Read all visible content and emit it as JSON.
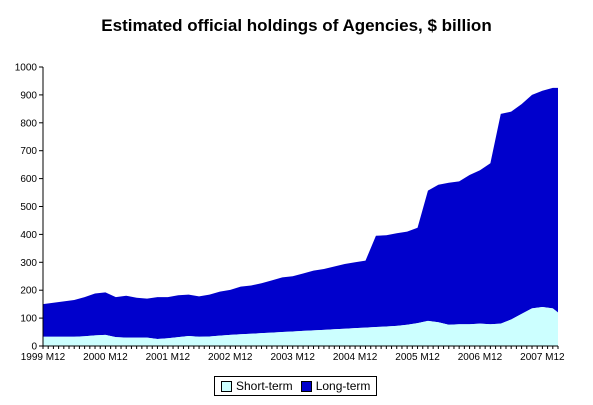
{
  "chart_data": {
    "type": "area",
    "stacked": true,
    "title": "Estimated official holdings of Agencies, $ billion",
    "xlabel": "",
    "ylabel": "",
    "ylim": [
      0,
      1000
    ],
    "yticks": [
      0,
      100,
      200,
      300,
      400,
      500,
      600,
      700,
      800,
      900,
      1000
    ],
    "x_tick_labels": [
      "1999 M12",
      "2000 M12",
      "2001 M12",
      "2002 M12",
      "2003 M12",
      "2004 M12",
      "2005 M12",
      "2006 M12",
      "2007 M12"
    ],
    "x_range": [
      "1999 M12",
      "2008 M03"
    ],
    "grid": false,
    "legend": "bottom",
    "colors": {
      "short_term": "#ccffff",
      "long_term": "#0000cc"
    },
    "x": [
      "1999 M12",
      "2000 M02",
      "2000 M04",
      "2000 M06",
      "2000 M08",
      "2000 M10",
      "2000 M12",
      "2001 M02",
      "2001 M04",
      "2001 M06",
      "2001 M08",
      "2001 M10",
      "2001 M12",
      "2002 M02",
      "2002 M04",
      "2002 M06",
      "2002 M08",
      "2002 M10",
      "2002 M12",
      "2003 M02",
      "2003 M04",
      "2003 M06",
      "2003 M08",
      "2003 M10",
      "2003 M12",
      "2004 M02",
      "2004 M04",
      "2004 M06",
      "2004 M08",
      "2004 M10",
      "2004 M12",
      "2005 M02",
      "2005 M04",
      "2005 M06",
      "2005 M08",
      "2005 M10",
      "2005 M12",
      "2006 M02",
      "2006 M04",
      "2006 M06",
      "2006 M08",
      "2006 M10",
      "2006 M12",
      "2007 M02",
      "2007 M04",
      "2007 M06",
      "2007 M08",
      "2007 M10",
      "2007 M12",
      "2008 M02",
      "2008 M03"
    ],
    "series": [
      {
        "name": "Short-term",
        "values": [
          33,
          33,
          33,
          33,
          35,
          38,
          40,
          32,
          30,
          30,
          30,
          25,
          28,
          32,
          36,
          33,
          34,
          37,
          40,
          42,
          44,
          46,
          48,
          50,
          52,
          54,
          56,
          58,
          60,
          62,
          64,
          66,
          68,
          70,
          72,
          76,
          82,
          90,
          85,
          76,
          78,
          78,
          80,
          78,
          80,
          95,
          115,
          135,
          140,
          135,
          120
        ]
      },
      {
        "name": "Long-term",
        "values": [
          117,
          122,
          127,
          132,
          140,
          150,
          152,
          143,
          150,
          143,
          140,
          150,
          147,
          150,
          148,
          145,
          150,
          158,
          161,
          171,
          173,
          179,
          187,
          196,
          198,
          206,
          214,
          218,
          225,
          232,
          236,
          240,
          327,
          327,
          332,
          334,
          342,
          467,
          493,
          509,
          512,
          535,
          550,
          577,
          752,
          745,
          752,
          765,
          775,
          790,
          805
        ]
      }
    ]
  }
}
